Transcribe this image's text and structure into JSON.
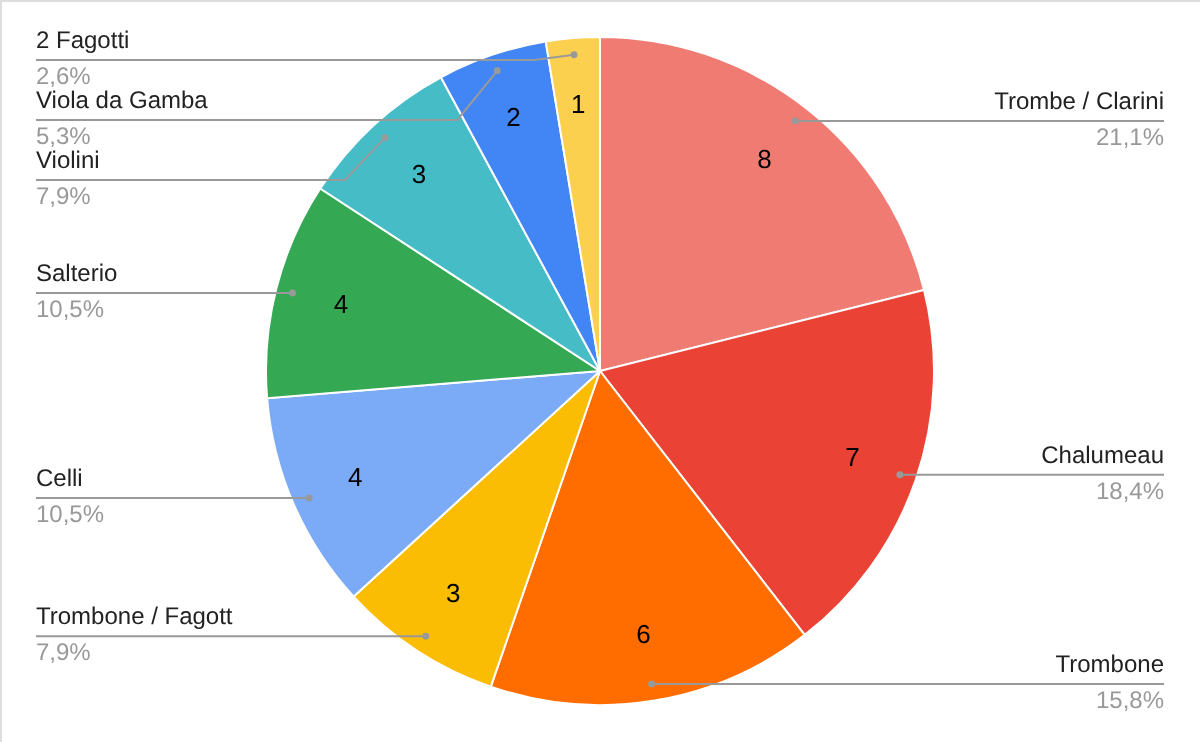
{
  "chart_data": {
    "type": "pie",
    "categories": [
      "Trombe / Clarini",
      "Chalumeau",
      "Trombone",
      "Trombone / Fagott",
      "Celli",
      "Salterio",
      "Violini",
      "Viola da Gamba",
      "2 Fagotti"
    ],
    "values": [
      21.1,
      18.4,
      15.8,
      7.9,
      10.5,
      10.5,
      7.9,
      5.3,
      2.6
    ],
    "colors": [
      "#f07b72",
      "#ea4335",
      "#ff6d01",
      "#fbbc04",
      "#7baaf7",
      "#34a853",
      "#46bdc6",
      "#4285f4",
      "#fcd04f"
    ],
    "value_labels": [
      "21,1%",
      "18,4%",
      "15,8%",
      "7,9%",
      "10,5%",
      "10,5%",
      "7,9%",
      "5,3%",
      "2,6%"
    ],
    "annotations": [
      "8",
      "7",
      "6",
      "3",
      "4",
      "4",
      "3",
      "2",
      "1"
    ]
  }
}
